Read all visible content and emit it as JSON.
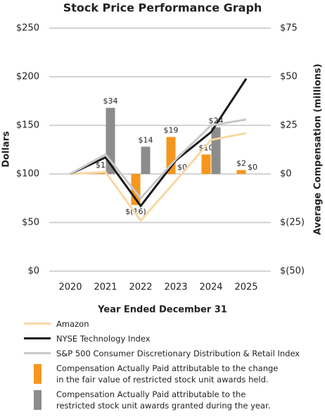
{
  "chart_data": {
    "type": "combo",
    "title": "Stock Price Performance Graph",
    "x_label": "Year Ended December 31",
    "y_label": "Dollars",
    "y2_label": "Average Compensation (millions)",
    "categories": [
      "2020",
      "2021",
      "2022",
      "2023",
      "2024",
      "2025"
    ],
    "ylim": [
      0,
      250
    ],
    "yticks": [
      {
        "value": 0,
        "label": "$0"
      },
      {
        "value": 50,
        "label": "$50"
      },
      {
        "value": 100,
        "label": "$100"
      },
      {
        "value": 150,
        "label": "$150"
      },
      {
        "value": 200,
        "label": "$200"
      },
      {
        "value": 250,
        "label": "$250"
      }
    ],
    "y2lim": [
      -50,
      75
    ],
    "y2ticks": [
      {
        "value": -50,
        "label": "$(50)"
      },
      {
        "value": -25,
        "label": "$(25)"
      },
      {
        "value": 0,
        "label": "$0"
      },
      {
        "value": 25,
        "label": "$25"
      },
      {
        "value": 50,
        "label": "$50"
      },
      {
        "value": 75,
        "label": "$75"
      }
    ],
    "grid": true,
    "series": [
      {
        "name": "Amazon",
        "type": "line",
        "color": "#f9d7a3",
        "values": [
          100,
          102,
          52,
          93,
          135,
          142
        ]
      },
      {
        "name": "NYSE Technology Index",
        "type": "line",
        "color": "#1a1a1a",
        "values": [
          100,
          117,
          67,
          114,
          143,
          198
        ]
      },
      {
        "name": "S&P 500 Consumer Discretionary Distribution & Retail Index",
        "type": "line",
        "color": "#c8c8c8",
        "values": [
          100,
          120,
          75,
          115,
          150,
          156
        ]
      },
      {
        "name": "Compensation Actually Paid attributable to the change in the fair value of restricted stock unit awards held.",
        "type": "bar",
        "axis": "y2",
        "color": "#f5961e",
        "values": [
          null,
          1,
          -16,
          19,
          10,
          2
        ],
        "value_labels": [
          null,
          "$1",
          "$(16)",
          "$19",
          "$10",
          "$2"
        ]
      },
      {
        "name": "Compensation Actually Paid attributable to the restricted stock unit awards granted during the year.",
        "type": "bar",
        "axis": "y2",
        "color": "#8c8c8c",
        "values": [
          null,
          34,
          14,
          0,
          24,
          0
        ],
        "value_labels": [
          null,
          "$34",
          "$14",
          "$0",
          "$24",
          "$0"
        ]
      }
    ]
  }
}
